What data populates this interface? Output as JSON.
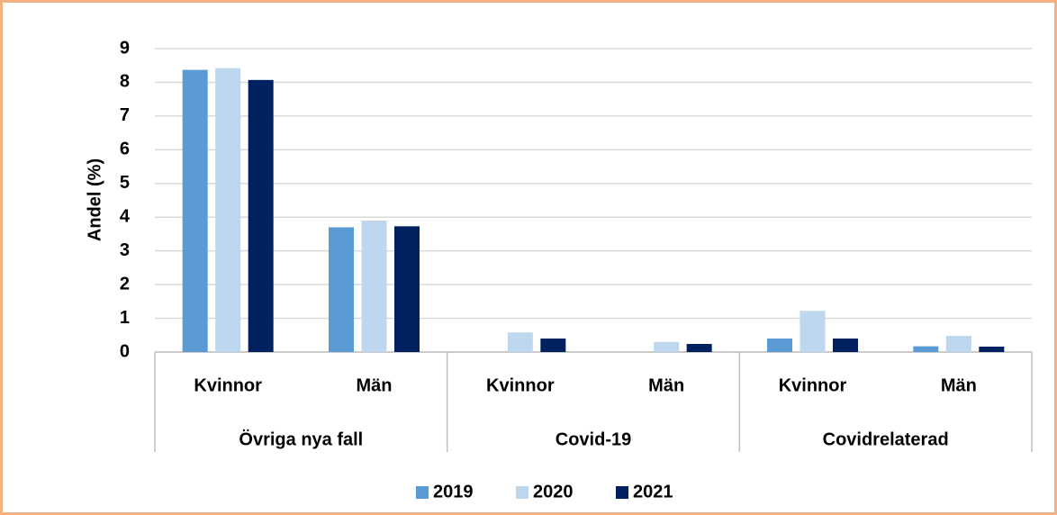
{
  "chart_data": {
    "type": "bar",
    "y_label": "Andel (%)",
    "categories": [
      "Kvinnor",
      "Män",
      "Kvinnor",
      "Män",
      "Kvinnor",
      "Män"
    ],
    "groups": [
      "Övriga nya fall",
      "Covid-19",
      "Covidrelaterad"
    ],
    "series": [
      {
        "name": "2019",
        "color": "#5b9bd5",
        "values": [
          8.37,
          3.7,
          0,
          0,
          0.4,
          0.17
        ]
      },
      {
        "name": "2020",
        "color": "#bdd7ee",
        "values": [
          8.42,
          3.9,
          0.58,
          0.3,
          1.22,
          0.48
        ]
      },
      {
        "name": "2021",
        "color": "#002060",
        "values": [
          8.07,
          3.73,
          0.4,
          0.24,
          0.4,
          0.16
        ]
      }
    ],
    "ylim": [
      0,
      9
    ],
    "yticks": [
      0,
      1,
      2,
      3,
      4,
      5,
      6,
      7,
      8,
      9
    ],
    "grid": true,
    "legend": "bottom"
  }
}
